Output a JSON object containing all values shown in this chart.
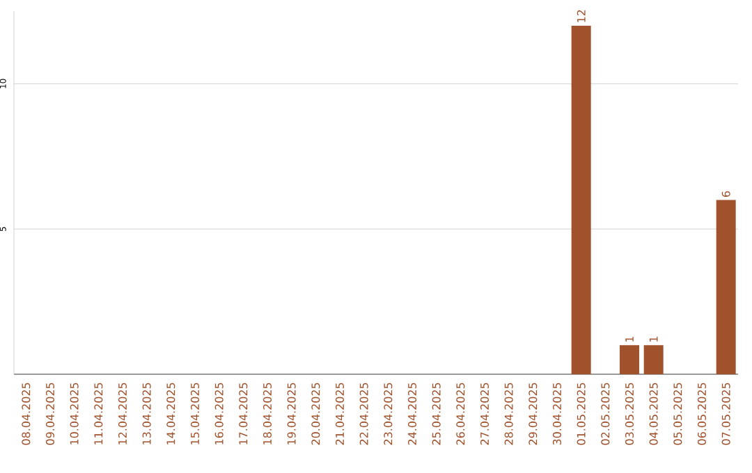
{
  "chart_data": {
    "type": "bar",
    "categories": [
      "08.04.2025",
      "09.04.2025",
      "10.04.2025",
      "11.04.2025",
      "12.04.2025",
      "13.04.2025",
      "14.04.2025",
      "15.04.2025",
      "16.04.2025",
      "17.04.2025",
      "18.04.2025",
      "19.04.2025",
      "20.04.2025",
      "21.04.2025",
      "22.04.2025",
      "23.04.2025",
      "24.04.2025",
      "25.04.2025",
      "26.04.2025",
      "27.04.2025",
      "28.04.2025",
      "29.04.2025",
      "30.04.2025",
      "01.05.2025",
      "02.05.2025",
      "03.05.2025",
      "04.05.2025",
      "05.05.2025",
      "06.05.2025",
      "07.05.2025"
    ],
    "values": [
      0,
      0,
      0,
      0,
      0,
      0,
      0,
      0,
      0,
      0,
      0,
      0,
      0,
      0,
      0,
      0,
      0,
      0,
      0,
      0,
      0,
      0,
      0,
      12,
      0,
      1,
      1,
      0,
      0,
      6
    ],
    "value_labels": [
      null,
      null,
      null,
      null,
      null,
      null,
      null,
      null,
      null,
      null,
      null,
      null,
      null,
      null,
      null,
      null,
      null,
      null,
      null,
      null,
      null,
      null,
      null,
      "12",
      null,
      "1",
      "1",
      null,
      null,
      "6"
    ],
    "color": "#a0522d",
    "ylim": [
      0,
      12.5
    ],
    "yticks": [
      5,
      10
    ],
    "grid": "y"
  }
}
